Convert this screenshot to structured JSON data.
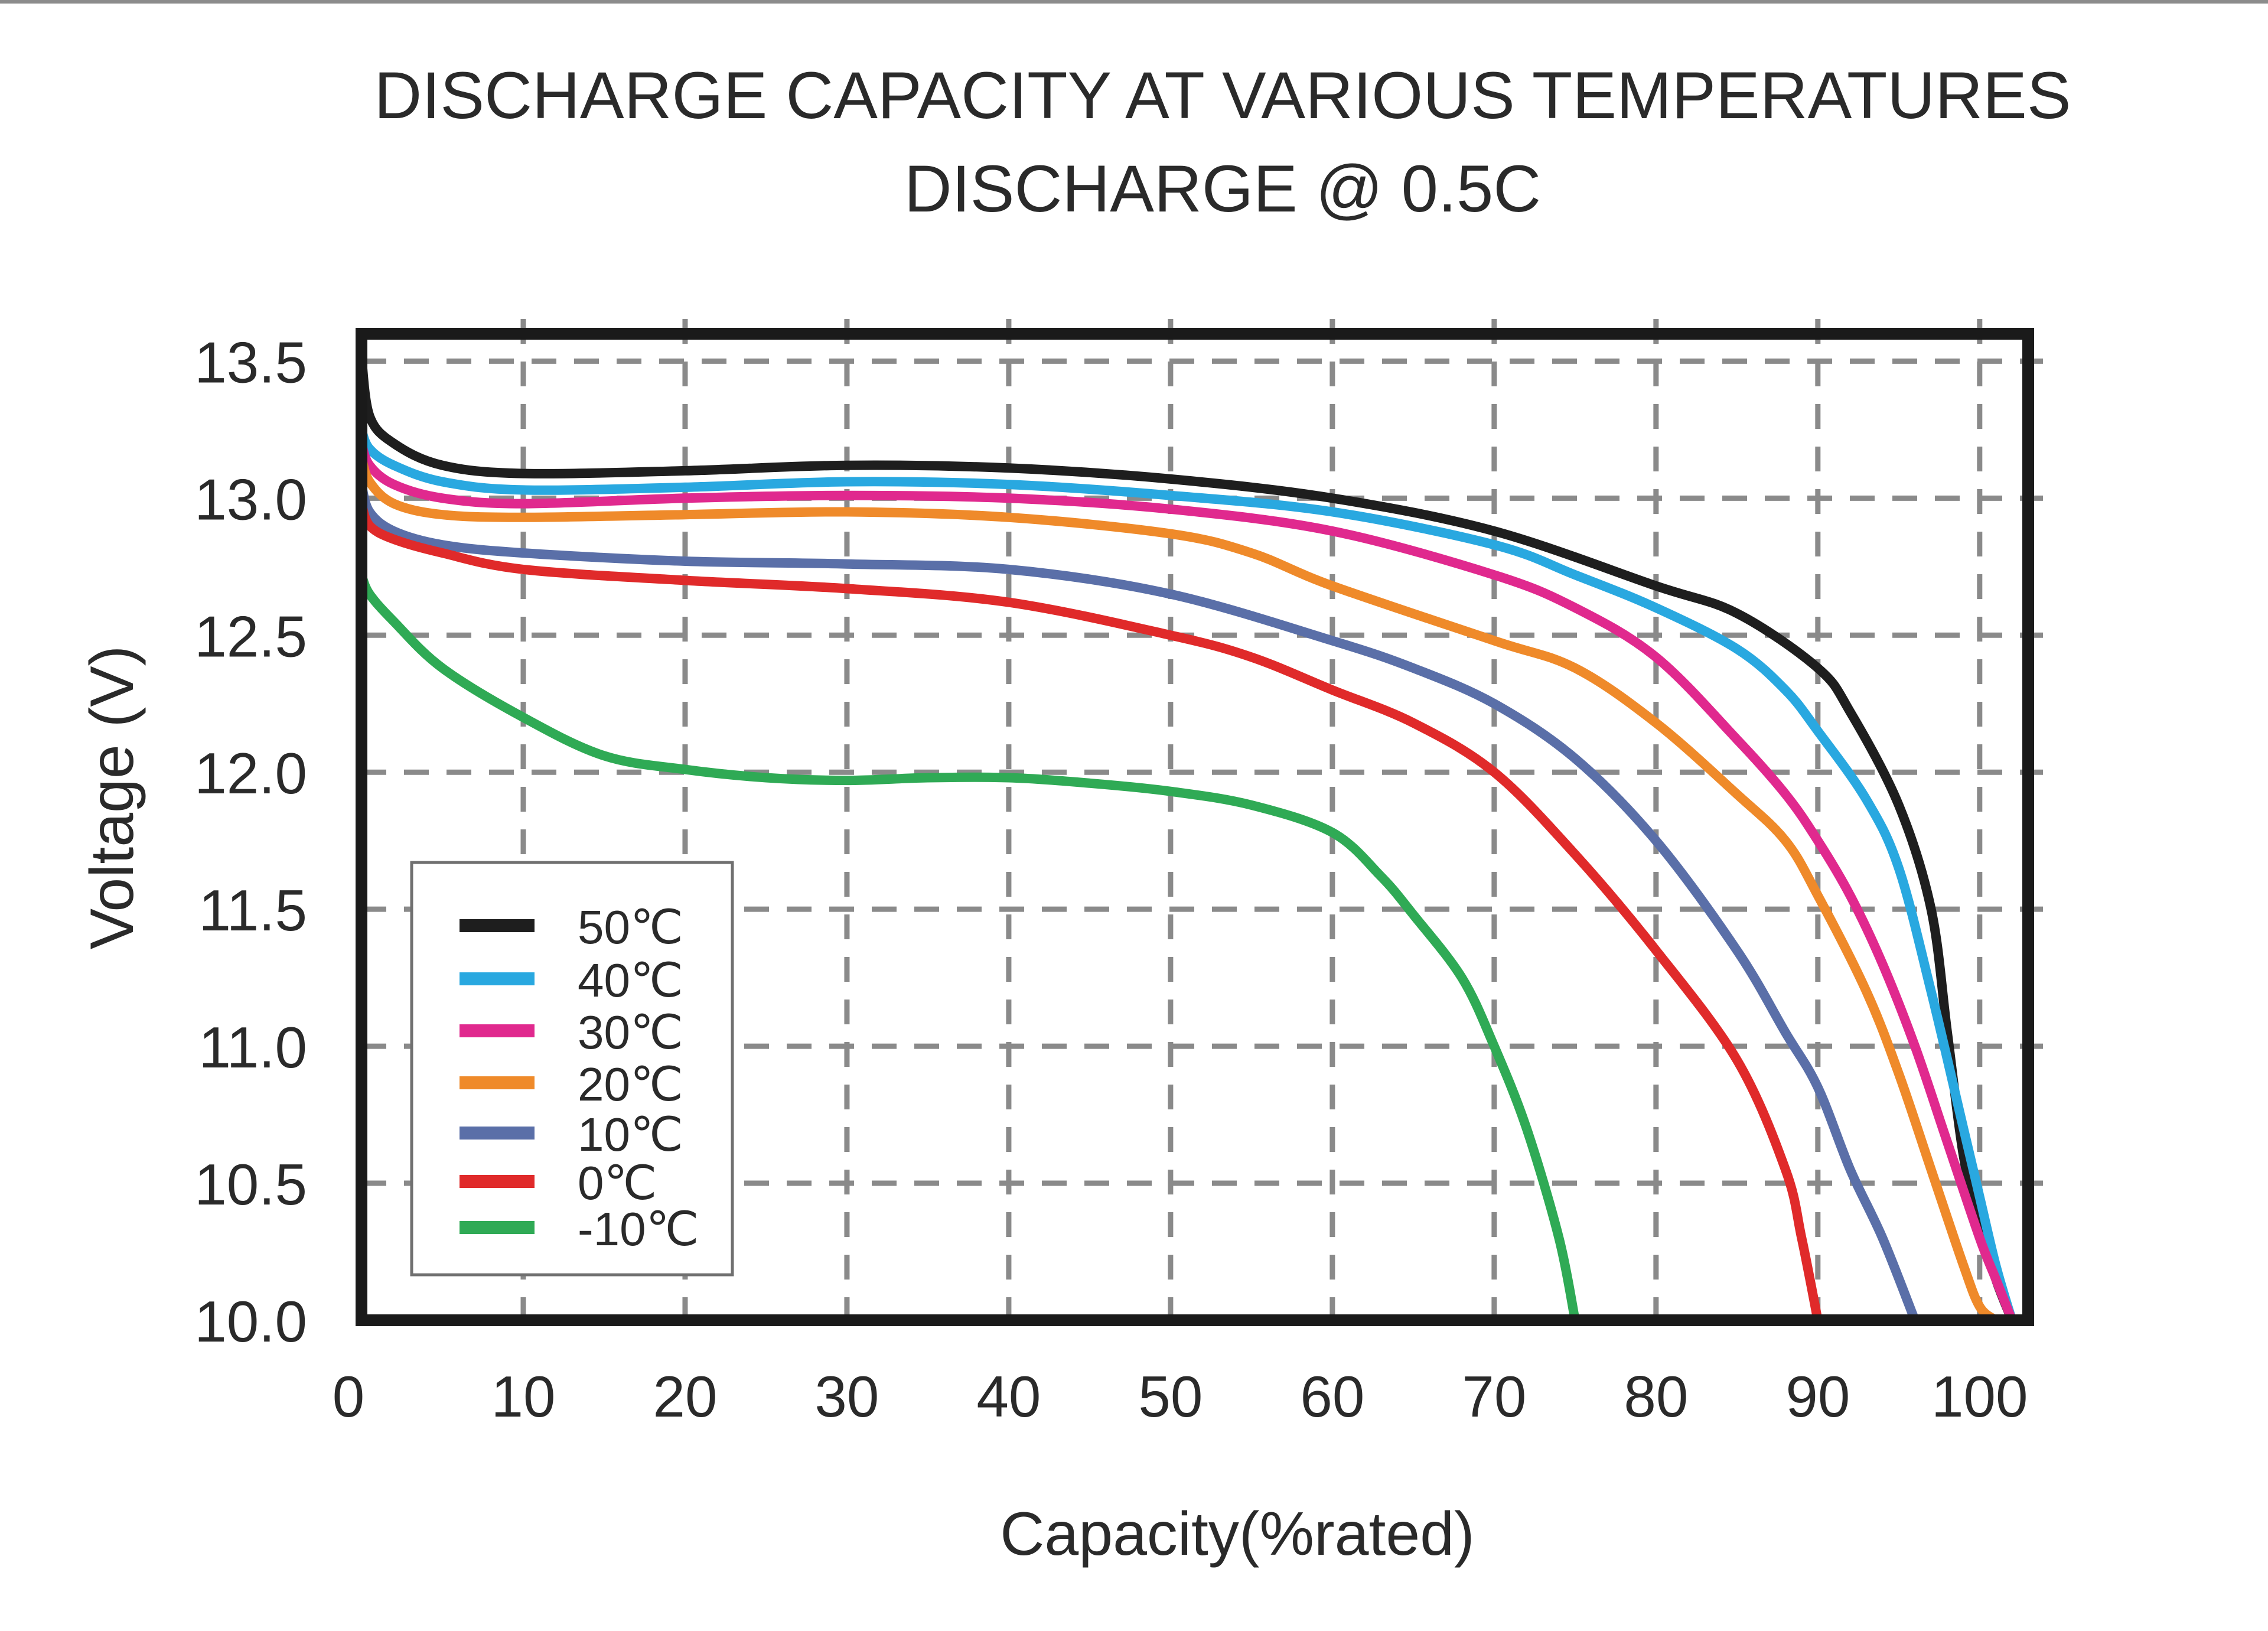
{
  "chart_data": {
    "type": "line",
    "title": "DISCHARGE CAPACITY AT VARIOUS TEMPERATURES",
    "subtitle": "DISCHARGE @ 0.5C",
    "xlabel": "Capacity(%rated)",
    "ylabel": "Voltage (V)",
    "xlim": [
      0,
      103
    ],
    "ylim": [
      10.0,
      13.6
    ],
    "grid": true,
    "legend_position": "bottom-left",
    "x_ticks": [
      {
        "value": 0,
        "label": "0"
      },
      {
        "value": 10,
        "label": "10"
      },
      {
        "value": 20,
        "label": "20"
      },
      {
        "value": 30,
        "label": "30"
      },
      {
        "value": 40,
        "label": "40"
      },
      {
        "value": 50,
        "label": "50"
      },
      {
        "value": 60,
        "label": "60"
      },
      {
        "value": 70,
        "label": "70"
      },
      {
        "value": 80,
        "label": "80"
      },
      {
        "value": 90,
        "label": "90"
      },
      {
        "value": 100,
        "label": "100"
      }
    ],
    "y_ticks": [
      {
        "value": 10.0,
        "label": "10.0"
      },
      {
        "value": 10.5,
        "label": "10.5"
      },
      {
        "value": 11.0,
        "label": "11.0"
      },
      {
        "value": 11.5,
        "label": "11.5"
      },
      {
        "value": 12.0,
        "label": "12.0"
      },
      {
        "value": 12.5,
        "label": "12.5"
      },
      {
        "value": 13.0,
        "label": "13.0"
      },
      {
        "value": 13.5,
        "label": "13.5"
      }
    ],
    "series": [
      {
        "name": "50℃",
        "color": "#1e1e1e",
        "x": [
          0,
          0.5,
          2,
          5,
          10,
          20,
          30,
          40,
          50,
          60,
          70,
          80,
          85,
          90,
          92,
          95,
          97,
          98,
          99,
          100,
          101,
          102
        ],
        "y": [
          13.52,
          13.3,
          13.2,
          13.12,
          13.09,
          13.1,
          13.12,
          13.11,
          13.07,
          13.0,
          12.88,
          12.68,
          12.58,
          12.38,
          12.22,
          11.88,
          11.5,
          11.05,
          10.6,
          10.35,
          10.15,
          10.0
        ]
      },
      {
        "name": "40℃",
        "color": "#29a8e0",
        "x": [
          0,
          0.5,
          2,
          5,
          10,
          20,
          30,
          40,
          50,
          60,
          70,
          75,
          80,
          85,
          88,
          90,
          93,
          95,
          97,
          99,
          100,
          101,
          102
        ],
        "y": [
          13.25,
          13.18,
          13.12,
          13.06,
          13.03,
          13.04,
          13.06,
          13.05,
          13.01,
          12.95,
          12.83,
          12.72,
          12.6,
          12.45,
          12.3,
          12.15,
          11.9,
          11.65,
          11.2,
          10.7,
          10.45,
          10.2,
          10.0
        ]
      },
      {
        "name": "30℃",
        "color": "#e0298e",
        "x": [
          0,
          0.5,
          2,
          5,
          10,
          20,
          30,
          40,
          50,
          60,
          70,
          75,
          80,
          85,
          88,
          90,
          92,
          94,
          96,
          98,
          100,
          101,
          102
        ],
        "y": [
          13.2,
          13.12,
          13.05,
          13.0,
          12.98,
          13.0,
          13.01,
          13.0,
          12.96,
          12.88,
          12.72,
          12.6,
          12.42,
          12.12,
          11.92,
          11.75,
          11.55,
          11.3,
          11.0,
          10.65,
          10.3,
          10.15,
          10.0
        ]
      },
      {
        "name": "20℃",
        "color": "#ef8a2a",
        "x": [
          0,
          0.5,
          2,
          5,
          10,
          20,
          30,
          40,
          50,
          55,
          60,
          70,
          75,
          80,
          85,
          88,
          90,
          93,
          95,
          97,
          99,
          100,
          101
        ],
        "y": [
          13.15,
          13.06,
          12.98,
          12.94,
          12.93,
          12.94,
          12.95,
          12.93,
          12.87,
          12.8,
          12.68,
          12.48,
          12.38,
          12.18,
          11.92,
          11.75,
          11.55,
          11.2,
          10.9,
          10.55,
          10.2,
          10.05,
          10.0
        ]
      },
      {
        "name": "10℃",
        "color": "#5a6fa8",
        "x": [
          0,
          0.5,
          2,
          5,
          10,
          20,
          30,
          40,
          50,
          60,
          65,
          70,
          75,
          80,
          85,
          88,
          90,
          92,
          94,
          96
        ],
        "y": [
          13.05,
          12.95,
          12.88,
          12.83,
          12.8,
          12.77,
          12.76,
          12.74,
          12.65,
          12.48,
          12.38,
          12.25,
          12.05,
          11.75,
          11.35,
          11.05,
          10.85,
          10.55,
          10.3,
          10.0
        ]
      },
      {
        "name": "0℃",
        "color": "#e02a2a",
        "x": [
          0,
          0.5,
          2,
          5,
          10,
          20,
          30,
          40,
          50,
          55,
          60,
          65,
          70,
          75,
          80,
          85,
          88,
          89,
          90
        ],
        "y": [
          12.98,
          12.9,
          12.85,
          12.8,
          12.74,
          12.7,
          12.67,
          12.62,
          12.5,
          12.42,
          12.3,
          12.18,
          12.0,
          11.7,
          11.35,
          10.95,
          10.55,
          10.3,
          10.0
        ]
      },
      {
        "name": "-10℃",
        "color": "#2faa55",
        "x": [
          0,
          0.5,
          2,
          5,
          10,
          15,
          20,
          25,
          30,
          35,
          40,
          45,
          50,
          55,
          60,
          63,
          65,
          68,
          70,
          72,
          74,
          75
        ],
        "y": [
          12.72,
          12.65,
          12.55,
          12.38,
          12.2,
          12.06,
          12.01,
          11.98,
          11.97,
          11.98,
          11.98,
          11.96,
          11.93,
          11.88,
          11.78,
          11.62,
          11.48,
          11.25,
          11.0,
          10.7,
          10.3,
          10.0
        ]
      }
    ]
  }
}
